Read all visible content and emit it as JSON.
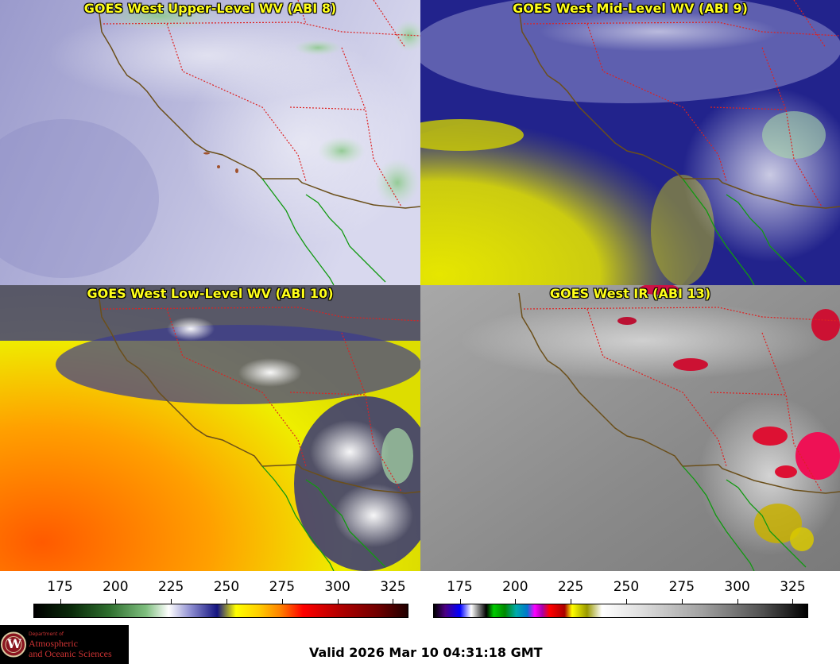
{
  "panels": [
    {
      "title": "GOES West Upper-Level WV (ABI 8)"
    },
    {
      "title": "GOES West Mid-Level WV (ABI 9)"
    },
    {
      "title": "GOES West Low-Level WV (ABI 10)"
    },
    {
      "title": "GOES West IR (ABI 13)"
    }
  ],
  "colorbar_wv": {
    "ticks": [
      "175",
      "200",
      "225",
      "250",
      "275",
      "300",
      "325"
    ],
    "range": [
      163,
      332
    ]
  },
  "colorbar_ir": {
    "ticks": [
      "175",
      "200",
      "225",
      "250",
      "275",
      "300",
      "325"
    ],
    "range": [
      163,
      332
    ]
  },
  "logo": {
    "line1": "Department of",
    "line2": "Atmospheric",
    "line3": "and Oceanic Sciences",
    "seal_letter": "W"
  },
  "valid_text": "Valid 2026 Mar 10 04:31:18 GMT",
  "colors": {
    "title_text": "#ffff1a",
    "state_border": "#dd2222",
    "coast_us": "#6b4f1a",
    "coast_mexico": "#119911"
  }
}
